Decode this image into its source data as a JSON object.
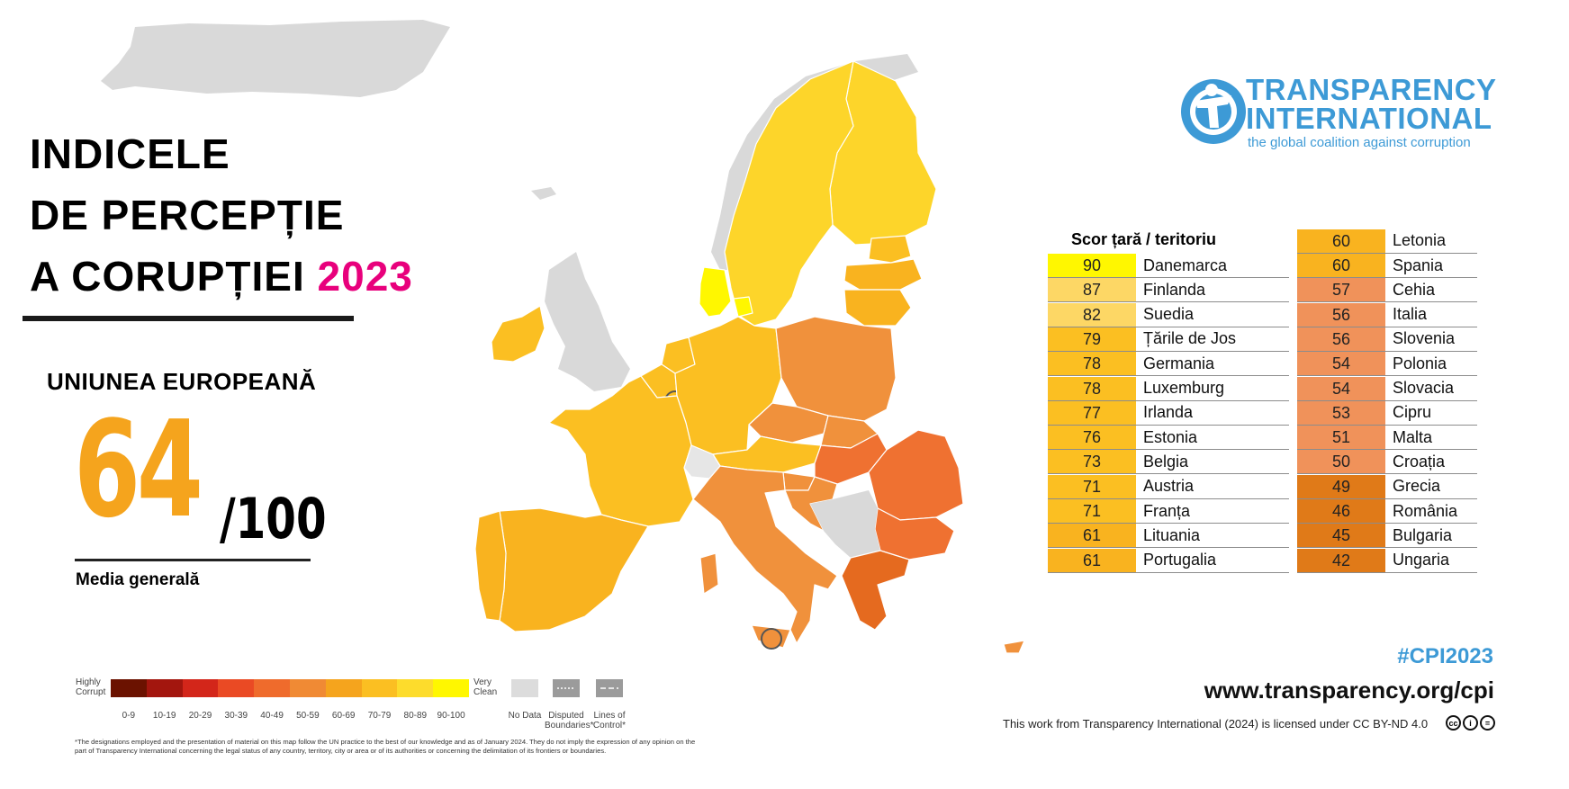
{
  "title": {
    "line1": "INDICELE",
    "line2": "DE PERCEPȚIE",
    "line3": "A CORUPȚIEI",
    "year": "2023"
  },
  "region": "UNIUNEA EUROPEANĂ",
  "average": {
    "score": "64",
    "max": "/100",
    "label": "Media generală"
  },
  "legend": {
    "highly_corrupt": "Highly Corrupt",
    "very_clean": "Very Clean",
    "ranges": [
      "0-9",
      "10-19",
      "20-29",
      "30-39",
      "40-49",
      "50-59",
      "60-69",
      "70-79",
      "80-89",
      "90-100"
    ],
    "range_colors": [
      "#6b1200",
      "#a3160e",
      "#d3261a",
      "#ea4a24",
      "#ef6b2c",
      "#f08a34",
      "#f5a41d",
      "#fbbf22",
      "#fddc2c",
      "#fff700"
    ],
    "no_data": "No Data",
    "disputed": "Disputed Boundaries*",
    "lines_of_control": "Lines of Control*",
    "disclaimer": "*The designations employed and the presentation of material on this map follow the UN practice to the best of our knowledge and as of January 2024. They do not imply the expression of any opinion on the part of Transparency International concerning the legal status of any country, territory, city or area or of its authorities or concerning the delimitation of its frontiers or boundaries."
  },
  "logo": {
    "name_line1": "TRANSPARENCY",
    "name_line2": "INTERNATIONAL",
    "tagline": "the global coalition against corruption"
  },
  "table": {
    "header": "Scor țară / teritoriu",
    "left": [
      {
        "score": "90",
        "country": "Danemarca",
        "color": "#fff700"
      },
      {
        "score": "87",
        "country": "Finlanda",
        "color": "#fdd765"
      },
      {
        "score": "82",
        "country": "Suedia",
        "color": "#fdd765"
      },
      {
        "score": "79",
        "country": "Țările de Jos",
        "color": "#fbbf22"
      },
      {
        "score": "78",
        "country": "Germania",
        "color": "#fbbf22"
      },
      {
        "score": "78",
        "country": "Luxemburg",
        "color": "#fbbf22"
      },
      {
        "score": "77",
        "country": "Irlanda",
        "color": "#fbbf22"
      },
      {
        "score": "76",
        "country": "Estonia",
        "color": "#fbbf22"
      },
      {
        "score": "73",
        "country": "Belgia",
        "color": "#fbbf22"
      },
      {
        "score": "71",
        "country": "Austria",
        "color": "#fbbf22"
      },
      {
        "score": "71",
        "country": "Franța",
        "color": "#fbbf22"
      },
      {
        "score": "61",
        "country": "Lituania",
        "color": "#f9b31f"
      },
      {
        "score": "61",
        "country": "Portugalia",
        "color": "#f9b31f"
      }
    ],
    "right": [
      {
        "score": "60",
        "country": "Letonia",
        "color": "#f9b31f"
      },
      {
        "score": "60",
        "country": "Spania",
        "color": "#f9b31f"
      },
      {
        "score": "57",
        "country": "Cehia",
        "color": "#f0925a"
      },
      {
        "score": "56",
        "country": "Italia",
        "color": "#f0925a"
      },
      {
        "score": "56",
        "country": "Slovenia",
        "color": "#f0925a"
      },
      {
        "score": "54",
        "country": "Polonia",
        "color": "#f0925a"
      },
      {
        "score": "54",
        "country": "Slovacia",
        "color": "#f0925a"
      },
      {
        "score": "53",
        "country": "Cipru",
        "color": "#f0925a"
      },
      {
        "score": "51",
        "country": "Malta",
        "color": "#f0925a"
      },
      {
        "score": "50",
        "country": "Croația",
        "color": "#f0925a"
      },
      {
        "score": "49",
        "country": "Grecia",
        "color": "#e07a18"
      },
      {
        "score": "46",
        "country": "România",
        "color": "#e07a18"
      },
      {
        "score": "45",
        "country": "Bulgaria",
        "color": "#e07a18"
      },
      {
        "score": "42",
        "country": "Ungaria",
        "color": "#e07a18"
      }
    ]
  },
  "footer": {
    "hashtag": "#CPI2023",
    "url": "www.transparency.org/cpi",
    "license": "This work from Transparency International (2024) is licensed under CC BY-ND 4.0"
  }
}
